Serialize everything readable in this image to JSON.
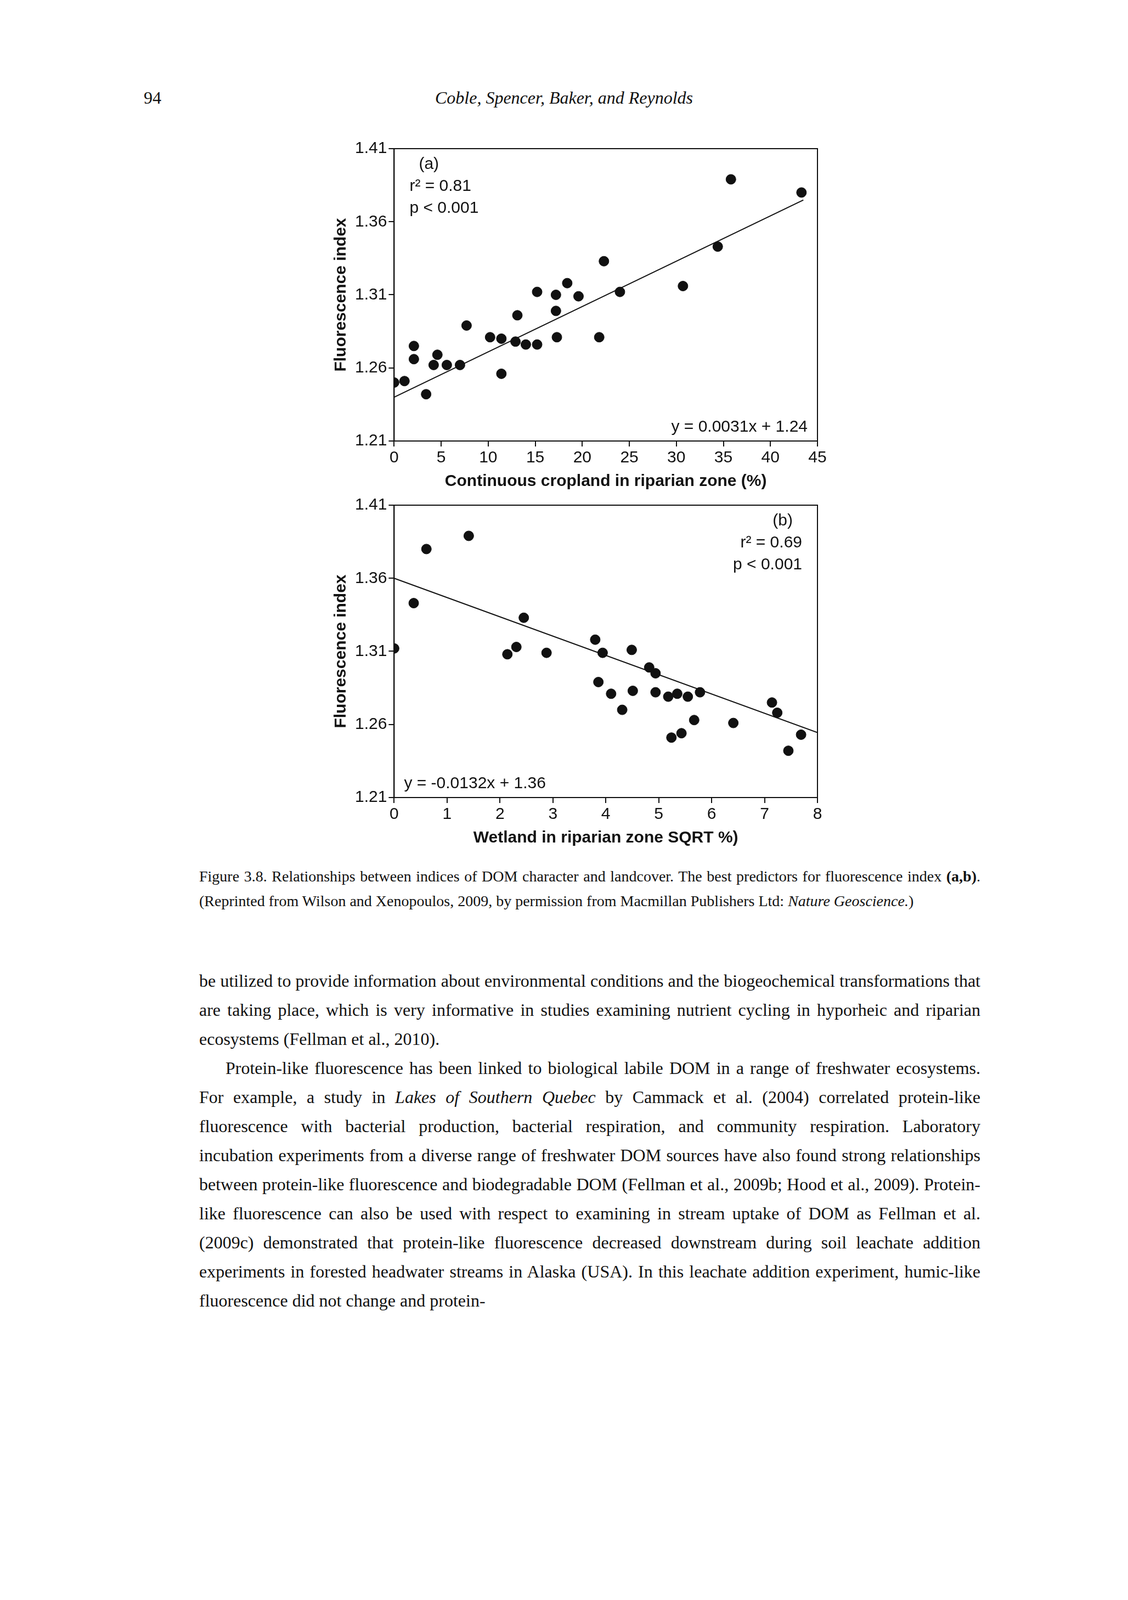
{
  "header": {
    "page_number": "94",
    "running_title": "Coble, Spencer, Baker, and Reynolds"
  },
  "chart_data": [
    {
      "type": "scatter",
      "x_label": "Continuous cropland in riparian zone (%)",
      "y_label": "Fluorescence index",
      "annotations": [
        "(a)",
        "r² = 0.81",
        "p < 0.001"
      ],
      "equation": "y = 0.0031x + 1.24",
      "trend": {
        "slope": 0.0031,
        "intercept": 1.24,
        "x_range": [
          0,
          43.5
        ]
      },
      "x": [
        35.8,
        43.3,
        34.4,
        22.3,
        18.4,
        15.2,
        17.2,
        19.6,
        24.0,
        30.7,
        17.2,
        13.1,
        7.7,
        10.2,
        11.4,
        12.9,
        14.0,
        15.2,
        17.3,
        21.8,
        2.1,
        2.1,
        4.6,
        4.2,
        5.6,
        7.0,
        11.4,
        0.0,
        1.1,
        3.4
      ],
      "values": [
        1.389,
        1.38,
        1.343,
        1.333,
        1.318,
        1.312,
        1.31,
        1.309,
        1.312,
        1.316,
        1.299,
        1.296,
        1.289,
        1.281,
        1.28,
        1.278,
        1.276,
        1.276,
        1.281,
        1.281,
        1.275,
        1.266,
        1.269,
        1.262,
        1.262,
        1.262,
        1.256,
        1.25,
        1.251,
        1.242
      ],
      "color": "#111111",
      "marker": "circle",
      "xlim": [
        0,
        45
      ],
      "xticks": [
        0,
        5,
        10,
        15,
        20,
        25,
        30,
        35,
        40,
        45
      ],
      "ylim": [
        1.21,
        1.41
      ],
      "yticks": [
        1.21,
        1.26,
        1.31,
        1.36,
        1.41
      ],
      "grid": false,
      "legend": "none"
    },
    {
      "type": "scatter",
      "x_label": "Wetland in riparian zone SQRT %)",
      "y_label": "Fluorescence index",
      "annotations": [
        "(b)",
        "r² = 0.69",
        "p < 0.001"
      ],
      "equation": "y = -0.0132x + 1.36",
      "trend": {
        "slope": -0.0132,
        "intercept": 1.36,
        "x_range": [
          0,
          8
        ]
      },
      "x": [
        0.61,
        1.41,
        0.37,
        0.0,
        2.45,
        2.31,
        2.14,
        2.88,
        3.8,
        3.94,
        4.49,
        4.82,
        4.94,
        3.86,
        4.1,
        4.31,
        4.51,
        4.94,
        5.18,
        5.35,
        5.55,
        5.78,
        5.67,
        5.43,
        5.24,
        6.41,
        7.14,
        7.24,
        7.69,
        7.45
      ],
      "values": [
        1.38,
        1.389,
        1.343,
        1.312,
        1.333,
        1.313,
        1.308,
        1.309,
        1.318,
        1.309,
        1.311,
        1.299,
        1.295,
        1.289,
        1.281,
        1.27,
        1.283,
        1.282,
        1.279,
        1.281,
        1.279,
        1.282,
        1.263,
        1.254,
        1.251,
        1.261,
        1.275,
        1.268,
        1.253,
        1.242
      ],
      "color": "#111111",
      "marker": "circle",
      "xlim": [
        0,
        8
      ],
      "xticks": [
        0,
        1,
        2,
        3,
        4,
        5,
        6,
        7,
        8
      ],
      "ylim": [
        1.21,
        1.41
      ],
      "yticks": [
        1.21,
        1.26,
        1.31,
        1.36,
        1.41
      ],
      "grid": false,
      "legend": "none"
    }
  ],
  "caption": [
    {
      "text": "Figure 3.8. Relationships between indices of DOM character and landcover. The best predictors for fluorescence index ",
      "style": "normal"
    },
    {
      "text": "(a,b)",
      "style": "bold"
    },
    {
      "text": ". (Reprinted from Wilson and Xenopoulos, 2009, by permission from Macmillan Publishers Ltd: ",
      "style": "normal"
    },
    {
      "text": "Nature Geoscience.",
      "style": "italic"
    },
    {
      "text": ")",
      "style": "normal"
    }
  ],
  "body": [
    {
      "indent": false,
      "runs": [
        {
          "text": "be utilized to provide information about environmental conditions and the biogeochemical transformations that are taking place, which is very informative in studies examining nutrient cycling in hyporheic and riparian ecosystems (Fellman et al., 2010).",
          "style": "normal"
        }
      ]
    },
    {
      "indent": true,
      "runs": [
        {
          "text": "Protein-like fluorescence has been linked to biological labile DOM in a range of freshwater ecosystems. For example, a study in ",
          "style": "normal"
        },
        {
          "text": "Lakes of Southern Quebec",
          "style": "italic"
        },
        {
          "text": " by Cammack et al. (2004) correlated protein-like fluorescence with bacterial production, bacterial respiration, and community respiration. Laboratory incubation experiments from a diverse range of freshwater DOM sources have also found strong relationships between protein-like fluorescence and biodegradable DOM (Fellman et al., 2009b; Hood et al., 2009). Protein-like fluorescence can also be used with respect to examining in stream uptake of DOM as Fellman et al. (2009c) demonstrated that protein-like fluorescence decreased downstream during soil leachate addition experiments in forested headwater streams in Alaska (USA). In this leachate addition experiment, humic-like fluorescence did not change and protein-",
          "style": "normal"
        }
      ]
    }
  ]
}
